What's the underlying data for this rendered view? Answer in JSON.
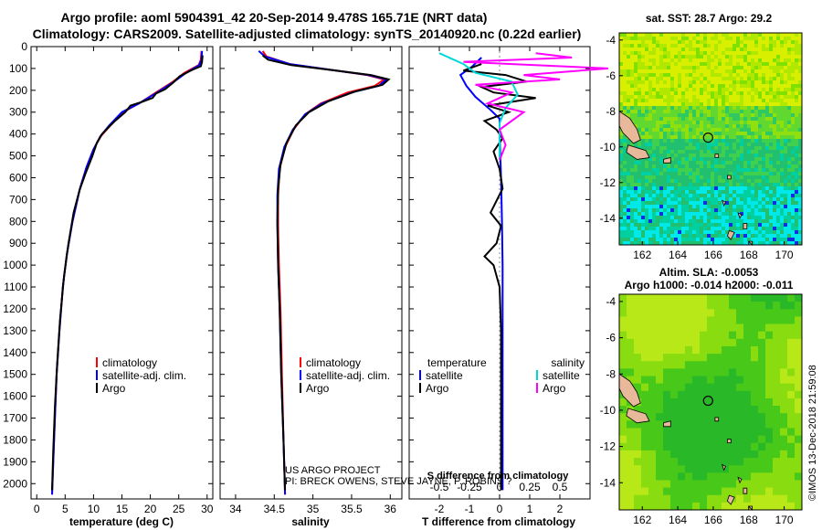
{
  "header": {
    "title_line1": "Argo profile: aoml 5904391_42 20-Sep-2014 9.478S 165.71E (NRT data)",
    "title_line2": "Climatology: CARS2009. Satellite-adjusted climatology: synTS_20140920.nc (0.22d earlier)"
  },
  "credits": {
    "project": "US ARGO PROJECT",
    "pis": "PI: BRECK OWENS, STEVE JAYNE, P. ROBINS ?",
    "imos": "©IMOS 13-Dec-2018 21:59:08"
  },
  "colors": {
    "climatology": "#ff0000",
    "satellite": "#0000ff",
    "argo": "#000000",
    "sal_satellite": "#00d8d8",
    "sal_argo": "#ff00ff"
  },
  "chart_data": [
    {
      "type": "line",
      "id": "temperature",
      "xlabel": "temperature (deg C)",
      "ylabel": "",
      "xlim": [
        -1,
        31
      ],
      "ylim": [
        2070,
        0
      ],
      "xticks": [
        0,
        5,
        10,
        15,
        20,
        25,
        30
      ],
      "yticks": [
        0,
        100,
        200,
        300,
        400,
        500,
        600,
        700,
        800,
        900,
        1000,
        1100,
        1200,
        1300,
        1400,
        1500,
        1600,
        1700,
        1800,
        1900,
        2000
      ],
      "legend": {
        "position": "bottom-center",
        "entries": [
          "climatology",
          "satellite-adj. clim.",
          "Argo"
        ]
      },
      "series": [
        {
          "name": "climatology",
          "color": "#ff0000",
          "points": [
            [
              29,
              20
            ],
            [
              28.9,
              60
            ],
            [
              28.5,
              85
            ],
            [
              26,
              120
            ],
            [
              24,
              160
            ],
            [
              21,
              210
            ],
            [
              18,
              260
            ],
            [
              15.2,
              300
            ],
            [
              13,
              360
            ],
            [
              11.3,
              410
            ],
            [
              10,
              470
            ],
            [
              8.8,
              550
            ],
            [
              7.6,
              650
            ],
            [
              6.3,
              800
            ],
            [
              5.3,
              950
            ],
            [
              4.6,
              1100
            ],
            [
              4.0,
              1300
            ],
            [
              3.5,
              1500
            ],
            [
              3.2,
              1700
            ],
            [
              2.9,
              1900
            ],
            [
              2.7,
              2050
            ]
          ]
        },
        {
          "name": "satellite-adj. clim.",
          "color": "#0000ff",
          "points": [
            [
              29.1,
              20
            ],
            [
              29,
              60
            ],
            [
              28.6,
              85
            ],
            [
              26.3,
              120
            ],
            [
              24.2,
              160
            ],
            [
              21.2,
              210
            ],
            [
              18,
              260
            ],
            [
              15,
              300
            ],
            [
              12.8,
              360
            ],
            [
              11.2,
              410
            ],
            [
              10,
              470
            ],
            [
              8.8,
              550
            ],
            [
              7.6,
              650
            ],
            [
              6.3,
              800
            ],
            [
              5.3,
              950
            ],
            [
              4.6,
              1100
            ],
            [
              4.0,
              1300
            ],
            [
              3.5,
              1500
            ],
            [
              3.2,
              1700
            ],
            [
              2.9,
              1900
            ],
            [
              2.7,
              2050
            ]
          ]
        },
        {
          "name": "Argo",
          "color": "#000000",
          "points": [
            [
              29.2,
              40
            ],
            [
              29.1,
              70
            ],
            [
              28.9,
              90
            ],
            [
              27.5,
              105
            ],
            [
              25.2,
              135
            ],
            [
              24,
              165
            ],
            [
              22.6,
              195
            ],
            [
              21,
              215
            ],
            [
              20.4,
              235
            ],
            [
              18.3,
              255
            ],
            [
              16.5,
              270
            ],
            [
              15.6,
              300
            ],
            [
              13.8,
              340
            ],
            [
              12.6,
              370
            ],
            [
              11.5,
              400
            ],
            [
              10.6,
              440
            ],
            [
              9.8,
              500
            ],
            [
              8.6,
              580
            ],
            [
              7.5,
              660
            ],
            [
              6.5,
              760
            ],
            [
              5.6,
              900
            ],
            [
              4.8,
              1050
            ],
            [
              4.1,
              1250
            ],
            [
              3.6,
              1450
            ],
            [
              3.2,
              1650
            ],
            [
              2.9,
              1850
            ],
            [
              2.7,
              2030
            ]
          ]
        }
      ]
    },
    {
      "type": "line",
      "id": "salinity",
      "xlabel": "salinity",
      "ylabel": "",
      "xlim": [
        33.8,
        36.15
      ],
      "ylim": [
        2070,
        0
      ],
      "xticks": [
        34,
        34.5,
        35,
        35.5,
        36
      ],
      "legend": {
        "position": "bottom-center",
        "entries": [
          "climatology",
          "satellite-adj. clim.",
          "Argo"
        ]
      },
      "series": [
        {
          "name": "climatology",
          "color": "#ff0000",
          "points": [
            [
              34.35,
              20
            ],
            [
              34.4,
              45
            ],
            [
              34.7,
              80
            ],
            [
              35.3,
              110
            ],
            [
              35.7,
              130
            ],
            [
              35.92,
              150
            ],
            [
              35.8,
              180
            ],
            [
              35.45,
              210
            ],
            [
              35.1,
              260
            ],
            [
              34.9,
              310
            ],
            [
              34.75,
              380
            ],
            [
              34.64,
              460
            ],
            [
              34.57,
              560
            ],
            [
              34.55,
              680
            ],
            [
              34.55,
              820
            ],
            [
              34.56,
              1000
            ],
            [
              34.58,
              1200
            ],
            [
              34.6,
              1500
            ],
            [
              34.62,
              1800
            ],
            [
              34.64,
              2050
            ]
          ]
        },
        {
          "name": "satellite-adj. clim.",
          "color": "#0000ff",
          "points": [
            [
              34.3,
              20
            ],
            [
              34.38,
              45
            ],
            [
              34.7,
              80
            ],
            [
              35.3,
              110
            ],
            [
              35.72,
              130
            ],
            [
              35.95,
              150
            ],
            [
              35.85,
              180
            ],
            [
              35.5,
              210
            ],
            [
              35.12,
              260
            ],
            [
              34.9,
              310
            ],
            [
              34.74,
              380
            ],
            [
              34.63,
              460
            ],
            [
              34.56,
              560
            ],
            [
              34.54,
              680
            ],
            [
              34.54,
              820
            ],
            [
              34.55,
              1000
            ],
            [
              34.57,
              1200
            ],
            [
              34.59,
              1500
            ],
            [
              34.62,
              1800
            ],
            [
              34.64,
              2050
            ]
          ]
        },
        {
          "name": "Argo",
          "color": "#000000",
          "points": [
            [
              34.35,
              40
            ],
            [
              34.42,
              60
            ],
            [
              34.72,
              85
            ],
            [
              35.3,
              110
            ],
            [
              35.75,
              130
            ],
            [
              35.98,
              150
            ],
            [
              35.9,
              175
            ],
            [
              35.55,
              205
            ],
            [
              35.2,
              250
            ],
            [
              34.95,
              300
            ],
            [
              34.78,
              360
            ],
            [
              34.66,
              440
            ],
            [
              34.58,
              540
            ],
            [
              34.55,
              650
            ],
            [
              34.54,
              800
            ],
            [
              34.55,
              1000
            ],
            [
              34.57,
              1200
            ],
            [
              34.59,
              1500
            ],
            [
              34.62,
              1800
            ],
            [
              34.64,
              2030
            ]
          ]
        }
      ]
    },
    {
      "type": "line",
      "id": "differences",
      "xlabel": "T difference from climatology",
      "x2label": "S difference from climatology",
      "xlim": [
        -3,
        3
      ],
      "ylim": [
        2070,
        0
      ],
      "xticks": [
        -2,
        -1,
        0,
        1,
        2
      ],
      "x2ticks": [
        "-0.5",
        "-0.25",
        "0",
        "0.25",
        "0.5"
      ],
      "legend": {
        "position": "bottom",
        "entries": [
          "temperature",
          "satellite",
          "Argo",
          "salinity",
          "satellite",
          "Argo"
        ]
      },
      "series": [
        {
          "name": "temperature satellite",
          "color": "#0000ff",
          "points": [
            [
              -0.6,
              50
            ],
            [
              -0.9,
              90
            ],
            [
              -1.3,
              130
            ],
            [
              -1.1,
              180
            ],
            [
              -0.8,
              230
            ],
            [
              -0.3,
              290
            ],
            [
              0,
              330
            ],
            [
              0,
              400
            ],
            [
              0.05,
              600
            ],
            [
              0.08,
              800
            ],
            [
              0.1,
              1000
            ],
            [
              0.1,
              1500
            ],
            [
              0.1,
              2030
            ]
          ]
        },
        {
          "name": "temperature Argo",
          "color": "#000000",
          "points": [
            [
              -0.6,
              80
            ],
            [
              -1.2,
              110
            ],
            [
              0.2,
              130
            ],
            [
              0.9,
              160
            ],
            [
              -0.6,
              185
            ],
            [
              -0.2,
              210
            ],
            [
              1.2,
              235
            ],
            [
              -0.4,
              270
            ],
            [
              0.3,
              300
            ],
            [
              -0.5,
              340
            ],
            [
              -0.1,
              380
            ],
            [
              0.1,
              420
            ],
            [
              -0.2,
              480
            ],
            [
              0,
              560
            ],
            [
              0.1,
              650
            ],
            [
              -0.3,
              760
            ],
            [
              0.05,
              820
            ],
            [
              -0.1,
              900
            ],
            [
              -0.5,
              960
            ],
            [
              -0.2,
              1000
            ],
            [
              0,
              1100
            ],
            [
              0.05,
              1300
            ],
            [
              0.05,
              1600
            ],
            [
              0.05,
              1800
            ],
            [
              0.05,
              2030
            ]
          ]
        },
        {
          "name": "salinity satellite",
          "color": "#00d8d8",
          "points": [
            [
              -0.5,
              30
            ],
            [
              -0.3,
              80
            ],
            [
              -0.2,
              120
            ],
            [
              0.1,
              160
            ],
            [
              0.15,
              220
            ],
            [
              0.05,
              280
            ],
            [
              0,
              350
            ],
            [
              0,
              450
            ],
            [
              0,
              520
            ]
          ]
        },
        {
          "name": "salinity Argo",
          "color": "#ff00ff",
          "points": [
            [
              0.3,
              30
            ],
            [
              0.6,
              50
            ],
            [
              -0.3,
              70
            ],
            [
              0.9,
              100
            ],
            [
              0.2,
              130
            ],
            [
              0.5,
              150
            ],
            [
              -0.2,
              175
            ],
            [
              0.1,
              210
            ],
            [
              -0.1,
              260
            ],
            [
              0.2,
              300
            ],
            [
              0,
              380
            ],
            [
              0.05,
              450
            ],
            [
              0,
              520
            ]
          ]
        }
      ]
    },
    {
      "type": "heatmap",
      "id": "sst-map",
      "title": "sat. SST: 28.7 Argo: 29.2",
      "xlim": [
        160.7,
        171
      ],
      "ylim": [
        -15.5,
        -3.6
      ],
      "xticks": [
        162,
        164,
        166,
        168,
        170
      ],
      "yticks": [
        -4,
        -6,
        -8,
        -10,
        -12,
        -14
      ],
      "marker": {
        "lon": 165.71,
        "lat": -9.478
      }
    },
    {
      "type": "heatmap",
      "id": "sla-map",
      "title": "Altim. SLA: -0.0053",
      "subtitle": "Argo h1000: -0.014 h2000: -0.011",
      "xlim": [
        160.7,
        171
      ],
      "ylim": [
        -15.5,
        -3.6
      ],
      "xticks": [
        162,
        164,
        166,
        168,
        170
      ],
      "yticks": [
        -4,
        -6,
        -8,
        -10,
        -12,
        -14
      ],
      "marker": {
        "lon": 165.71,
        "lat": -9.478
      }
    }
  ]
}
